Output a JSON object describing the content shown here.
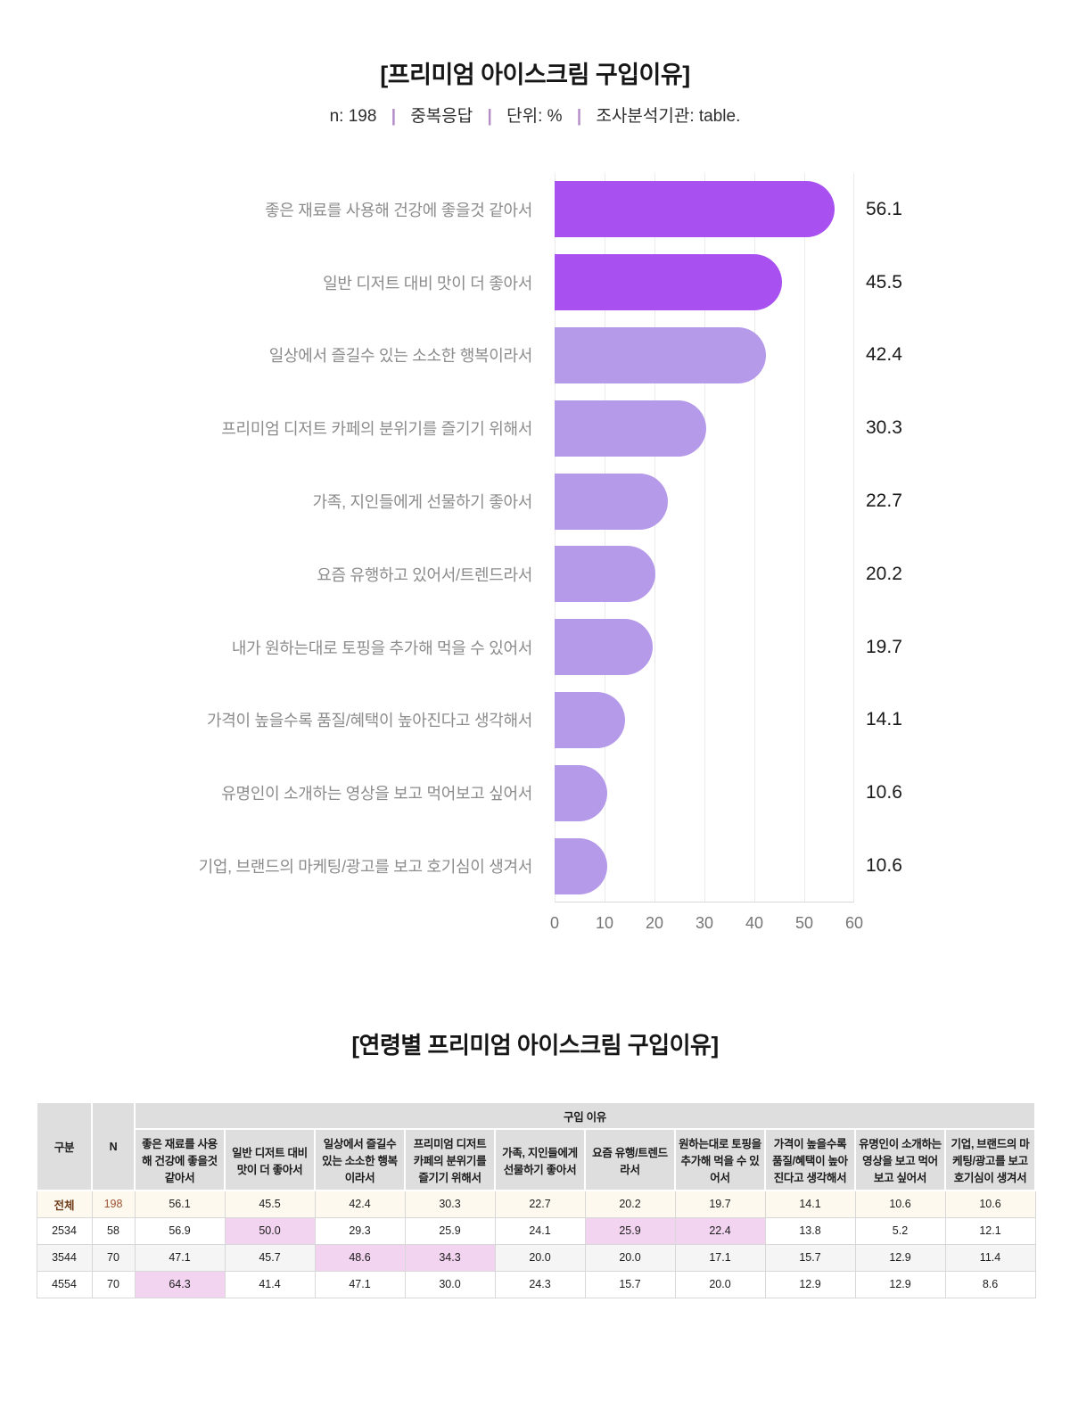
{
  "page": {
    "title": "[프리미엄 아이스크림 구입이유]",
    "subtitle": {
      "parts": [
        "n: 198",
        "중복응답",
        "단위: %",
        "조사분석기관: table."
      ],
      "separator": "|"
    },
    "section2_title": "[연령별 프리미엄 아이스크림 구입이유]"
  },
  "chart_data": {
    "type": "bar",
    "orientation": "horizontal",
    "title": "[프리미엄 아이스크림 구입이유]",
    "n": 198,
    "unit": "%",
    "categories": [
      "좋은 재료를 사용해 건강에 좋을것 같아서",
      "일반 디저트 대비 맛이 더 좋아서",
      "일상에서 즐길수 있는 소소한 행복이라서",
      "프리미엄 디저트 카페의 분위기를 즐기기 위해서",
      "가족, 지인들에게 선물하기 좋아서",
      "요즘 유행하고 있어서/트렌드라서",
      "내가 원하는대로 토핑을 추가해 먹을 수 있어서",
      "가격이 높을수록 품질/혜택이 높아진다고 생각해서",
      "유명인이 소개하는 영상을 보고 먹어보고 싶어서",
      "기업, 브랜드의 마케팅/광고를 보고 호기심이 생겨서"
    ],
    "values": [
      56.1,
      45.5,
      42.4,
      30.3,
      22.7,
      20.2,
      19.7,
      14.1,
      10.6,
      10.6
    ],
    "value_labels": [
      "56.1",
      "45.5",
      "42.4",
      "30.3",
      "22.7",
      "20.2",
      "19.7",
      "14.1",
      "10.6",
      "10.6"
    ],
    "xlim": [
      0,
      60
    ],
    "xticks": [
      "0",
      "10",
      "20",
      "30",
      "40",
      "50",
      "60"
    ],
    "grid": true,
    "colors": {
      "highlight_bar": "#a850f0",
      "normal_bar": "#b69aea"
    }
  },
  "table": {
    "col_group": "구분",
    "col_n": "N",
    "group_header": "구입 이유",
    "columns": [
      "좋은 재료를 사용해 건강에 좋을것 같아서",
      "일반 디저트 대비 맛이 더 좋아서",
      "일상에서 즐길수 있는 소소한 행복이라서",
      "프리미엄 디저트 카페의 분위기를 즐기기 위해서",
      "가족, 지인들에게 선물하기 좋아서",
      "요즘 유행/트렌드라서",
      "원하는대로 토핑을 추가해 먹을 수 있어서",
      "가격이 높을수록 품질/혜택이 높아진다고 생각해서",
      "유명인이 소개하는 영상을 보고 먹어보고 싶어서",
      "기업, 브랜드의 마케팅/광고를 보고 호기심이 생겨서"
    ],
    "rows": [
      {
        "label": "전체",
        "n": "198",
        "values": [
          "56.1",
          "45.5",
          "42.4",
          "30.3",
          "22.7",
          "20.2",
          "19.7",
          "14.1",
          "10.6",
          "10.6"
        ],
        "highlights": []
      },
      {
        "label": "2534",
        "n": "58",
        "values": [
          "56.9",
          "50.0",
          "29.3",
          "25.9",
          "24.1",
          "25.9",
          "22.4",
          "13.8",
          "5.2",
          "12.1"
        ],
        "highlights": [
          1,
          5,
          6
        ]
      },
      {
        "label": "3544",
        "n": "70",
        "values": [
          "47.1",
          "45.7",
          "48.6",
          "34.3",
          "20.0",
          "20.0",
          "17.1",
          "15.7",
          "12.9",
          "11.4"
        ],
        "highlights": [
          2,
          3
        ]
      },
      {
        "label": "4554",
        "n": "70",
        "values": [
          "64.3",
          "41.4",
          "47.1",
          "30.0",
          "24.3",
          "15.7",
          "20.0",
          "12.9",
          "12.9",
          "8.6"
        ],
        "highlights": [
          0
        ]
      }
    ],
    "highlight_color": "#f2d4f0"
  }
}
